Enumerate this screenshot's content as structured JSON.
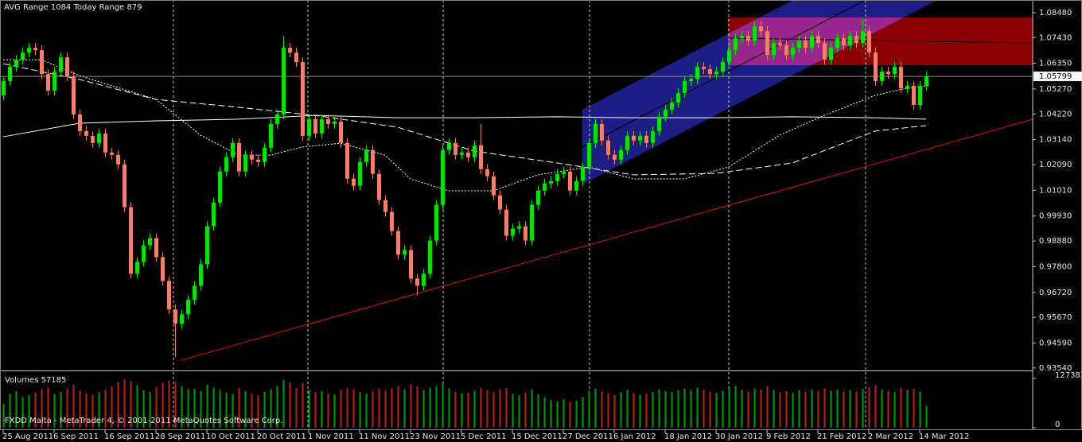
{
  "chart_data": {
    "type": "candlestick",
    "title": "AVG Range 1084   Today Range 879",
    "footer": "FXDD Malta - MetaTrader 4, © 2001-2011 MetaQuotes Software Corp.",
    "up_color": "#00e600",
    "down_color": "#f08068",
    "categories": [
      "25 Aug 2011",
      null,
      null,
      null,
      null,
      null,
      null,
      null,
      "6 Sep 2011",
      null,
      null,
      null,
      null,
      null,
      null,
      null,
      "16 Sep 2011",
      null,
      null,
      null,
      null,
      null,
      null,
      null,
      "28 Sep 2011",
      null,
      null,
      null,
      null,
      null,
      null,
      null,
      "10 Oct 2011",
      null,
      null,
      null,
      null,
      null,
      null,
      null,
      "20 Oct 2011",
      null,
      null,
      null,
      null,
      null,
      null,
      null,
      "1 Nov 2011",
      null,
      null,
      null,
      null,
      null,
      null,
      null,
      "11 Nov 2011",
      null,
      null,
      null,
      null,
      null,
      null,
      null,
      "23 Nov 2011",
      null,
      null,
      null,
      null,
      null,
      null,
      null,
      "5 Dec 2011",
      null,
      null,
      null,
      null,
      null,
      null,
      null,
      "15 Dec 2011",
      null,
      null,
      null,
      null,
      null,
      null,
      null,
      "27 Dec 2011",
      null,
      null,
      null,
      null,
      null,
      null,
      null,
      "6 Jan 2012",
      null,
      null,
      null,
      null,
      null,
      null,
      null,
      "18 Jan 2012",
      null,
      null,
      null,
      null,
      null,
      null,
      null,
      "30 Jan 2012",
      null,
      null,
      null,
      null,
      null,
      null,
      null,
      "9 Feb 2012",
      null,
      null,
      null,
      null,
      null,
      null,
      null,
      "21 Feb 2012",
      null,
      null,
      null,
      null,
      null,
      null,
      null,
      "2 Mar 2012",
      null,
      null,
      null,
      null,
      null,
      null,
      null,
      "14 Mar 2012",
      null
    ],
    "open": [
      1.05,
      1.056,
      1.062,
      1.065,
      1.068,
      1.07,
      1.069,
      1.059,
      1.052,
      1.06,
      1.066,
      1.058,
      1.042,
      1.035,
      1.033,
      1.03,
      1.034,
      1.026,
      1.025,
      1.021,
      1.003,
      0.975,
      0.98,
      0.987,
      0.99,
      0.982,
      0.972,
      0.96,
      0.954,
      0.958,
      0.964,
      0.97,
      0.979,
      0.995,
      1.005,
      1.018,
      1.024,
      1.03,
      1.018,
      1.025,
      1.023,
      1.022,
      1.028,
      1.038,
      1.042,
      1.07,
      1.068,
      1.064,
      1.033,
      1.04,
      1.034,
      1.04,
      1.038,
      1.039,
      1.03,
      1.015,
      1.012,
      1.022,
      1.027,
      1.017,
      1.006,
      1.001,
      0.993,
      0.983,
      0.985,
      0.973,
      0.97,
      0.975,
      0.989,
      1.004,
      1.027,
      1.03,
      1.025,
      1.026,
      1.024,
      1.029,
      1.019,
      1.016,
      1.008,
      1.002,
      0.991,
      0.994,
      0.995,
      0.989,
      1.004,
      1.01,
      1.013,
      1.014,
      1.017,
      1.018,
      1.01,
      1.014,
      1.02,
      1.03,
      1.038,
      1.031,
      1.025,
      1.023,
      1.027,
      1.033,
      1.031,
      1.033,
      1.03,
      1.035,
      1.041,
      1.044,
      1.047,
      1.051,
      1.056,
      1.057,
      1.062,
      1.061,
      1.059,
      1.06,
      1.064,
      1.069,
      1.074,
      1.075,
      1.073,
      1.079,
      1.077,
      1.067,
      1.072,
      1.071,
      1.067,
      1.07,
      1.073,
      1.07,
      1.075,
      1.072,
      1.065,
      1.07,
      1.074,
      1.071,
      1.075,
      1.072,
      1.077,
      1.068,
      1.056,
      1.06,
      1.059,
      1.062,
      1.053,
      1.054,
      1.046,
      1.054
    ],
    "high": [
      1.058,
      1.064,
      1.067,
      1.07,
      1.072,
      1.072,
      1.071,
      1.061,
      1.062,
      1.068,
      1.068,
      1.06,
      1.044,
      1.037,
      1.035,
      1.036,
      1.036,
      1.028,
      1.027,
      1.023,
      1.005,
      0.982,
      0.989,
      0.992,
      0.992,
      0.984,
      0.974,
      0.962,
      0.96,
      0.966,
      0.972,
      0.981,
      0.997,
      1.007,
      1.02,
      1.026,
      1.032,
      1.032,
      1.027,
      1.027,
      1.025,
      1.03,
      1.04,
      1.044,
      1.075,
      1.072,
      1.07,
      1.066,
      1.042,
      1.042,
      1.042,
      1.042,
      1.041,
      1.041,
      1.032,
      1.017,
      1.024,
      1.029,
      1.029,
      1.019,
      1.008,
      1.003,
      0.995,
      0.987,
      0.987,
      0.975,
      0.977,
      0.991,
      1.006,
      1.029,
      1.032,
      1.032,
      1.028,
      1.028,
      1.031,
      1.038,
      1.021,
      1.018,
      1.01,
      1.004,
      0.996,
      0.997,
      0.997,
      1.006,
      1.012,
      1.015,
      1.016,
      1.019,
      1.02,
      1.02,
      1.016,
      1.022,
      1.032,
      1.04,
      1.04,
      1.033,
      1.027,
      1.029,
      1.035,
      1.035,
      1.035,
      1.035,
      1.037,
      1.043,
      1.046,
      1.049,
      1.053,
      1.058,
      1.059,
      1.064,
      1.064,
      1.063,
      1.062,
      1.066,
      1.071,
      1.076,
      1.077,
      1.077,
      1.081,
      1.081,
      1.079,
      1.074,
      1.074,
      1.073,
      1.072,
      1.075,
      1.075,
      1.077,
      1.077,
      1.074,
      1.072,
      1.076,
      1.076,
      1.077,
      1.077,
      1.082,
      1.079,
      1.07,
      1.062,
      1.062,
      1.064,
      1.064,
      1.056,
      1.056,
      1.056,
      1.06
    ],
    "low": [
      1.048,
      1.054,
      1.06,
      1.063,
      1.066,
      1.067,
      1.057,
      1.05,
      1.05,
      1.058,
      1.056,
      1.04,
      1.033,
      1.031,
      1.028,
      1.028,
      1.024,
      1.023,
      1.019,
      1.001,
      0.973,
      0.973,
      0.978,
      0.985,
      0.98,
      0.97,
      0.958,
      0.94,
      0.952,
      0.956,
      0.962,
      0.968,
      0.977,
      0.993,
      1.003,
      1.016,
      1.022,
      1.016,
      1.016,
      1.021,
      1.02,
      1.02,
      1.026,
      1.036,
      1.04,
      1.066,
      1.062,
      1.031,
      1.031,
      1.032,
      1.032,
      1.036,
      1.036,
      1.028,
      1.013,
      1.01,
      1.01,
      1.02,
      1.015,
      1.004,
      0.999,
      0.991,
      0.981,
      0.981,
      0.971,
      0.966,
      0.968,
      0.973,
      0.987,
      1.002,
      1.025,
      1.023,
      1.023,
      1.022,
      1.022,
      1.017,
      1.014,
      1.006,
      1.0,
      0.989,
      0.989,
      0.992,
      0.987,
      0.987,
      1.002,
      1.008,
      1.011,
      1.012,
      1.015,
      1.008,
      1.008,
      1.012,
      1.018,
      1.028,
      1.029,
      1.023,
      1.021,
      1.021,
      1.025,
      1.029,
      1.029,
      1.028,
      1.028,
      1.033,
      1.039,
      1.042,
      1.045,
      1.049,
      1.054,
      1.055,
      1.059,
      1.057,
      1.057,
      1.058,
      1.062,
      1.067,
      1.072,
      1.071,
      1.071,
      1.075,
      1.065,
      1.065,
      1.069,
      1.065,
      1.065,
      1.068,
      1.068,
      1.068,
      1.07,
      1.063,
      1.063,
      1.068,
      1.069,
      1.069,
      1.07,
      1.07,
      1.066,
      1.054,
      1.054,
      1.057,
      1.057,
      1.051,
      1.051,
      1.044,
      1.044,
      1.052
    ],
    "close": [
      1.056,
      1.062,
      1.065,
      1.068,
      1.07,
      1.069,
      1.059,
      1.052,
      1.06,
      1.066,
      1.058,
      1.042,
      1.035,
      1.033,
      1.03,
      1.034,
      1.026,
      1.025,
      1.021,
      1.003,
      0.975,
      0.98,
      0.987,
      0.99,
      0.982,
      0.972,
      0.96,
      0.954,
      0.958,
      0.964,
      0.97,
      0.979,
      0.995,
      1.005,
      1.018,
      1.024,
      1.03,
      1.018,
      1.025,
      1.023,
      1.022,
      1.028,
      1.038,
      1.042,
      1.07,
      1.068,
      1.064,
      1.033,
      1.04,
      1.034,
      1.04,
      1.038,
      1.039,
      1.03,
      1.015,
      1.012,
      1.022,
      1.027,
      1.017,
      1.006,
      1.001,
      0.993,
      0.983,
      0.985,
      0.973,
      0.97,
      0.975,
      0.989,
      1.004,
      1.027,
      1.03,
      1.025,
      1.026,
      1.024,
      1.029,
      1.019,
      1.016,
      1.008,
      1.002,
      0.991,
      0.994,
      0.995,
      0.989,
      1.004,
      1.01,
      1.013,
      1.014,
      1.017,
      1.018,
      1.01,
      1.014,
      1.02,
      1.03,
      1.038,
      1.031,
      1.025,
      1.023,
      1.027,
      1.033,
      1.031,
      1.033,
      1.03,
      1.035,
      1.041,
      1.044,
      1.047,
      1.051,
      1.056,
      1.057,
      1.062,
      1.061,
      1.059,
      1.06,
      1.064,
      1.069,
      1.074,
      1.075,
      1.073,
      1.079,
      1.077,
      1.067,
      1.072,
      1.071,
      1.067,
      1.07,
      1.073,
      1.07,
      1.075,
      1.072,
      1.065,
      1.07,
      1.074,
      1.071,
      1.075,
      1.072,
      1.077,
      1.068,
      1.056,
      1.06,
      1.059,
      1.062,
      1.053,
      1.054,
      1.046,
      1.054,
      1.058
    ],
    "volume_label": "Volumes 57185",
    "volumes": [
      62000,
      88000,
      95000,
      78000,
      84000,
      91000,
      99000,
      104000,
      87000,
      93000,
      101000,
      112000,
      96000,
      89000,
      85000,
      92000,
      98000,
      107000,
      118000,
      125000,
      121000,
      110000,
      97000,
      93000,
      105000,
      116000,
      122000,
      119000,
      108000,
      99000,
      101000,
      95000,
      112000,
      104000,
      98000,
      91000,
      87000,
      102000,
      95000,
      88000,
      84000,
      93000,
      99000,
      108000,
      124000,
      117000,
      103000,
      115000,
      98000,
      92000,
      95000,
      89000,
      86000,
      97000,
      104000,
      99000,
      92000,
      88000,
      94000,
      101000,
      96000,
      103000,
      108000,
      99000,
      112000,
      106000,
      97000,
      104000,
      108000,
      115000,
      102000,
      93000,
      89000,
      91000,
      96000,
      104000,
      97000,
      92000,
      99000,
      103000,
      88000,
      84000,
      91000,
      99000,
      87000,
      79000,
      72000,
      68000,
      74000,
      66000,
      70000,
      80000,
      96000,
      101000,
      94000,
      89000,
      85000,
      92000,
      98000,
      90000,
      86000,
      88000,
      93000,
      99000,
      95000,
      92000,
      97000,
      101000,
      96000,
      104000,
      98000,
      93000,
      90000,
      96000,
      102000,
      108000,
      97000,
      94000,
      101000,
      99000,
      107000,
      98000,
      92000,
      95000,
      91000,
      97000,
      93000,
      99000,
      95000,
      102000,
      96000,
      98000,
      94000,
      97000,
      93000,
      101000,
      105000,
      110000,
      99000,
      95000,
      92000,
      104000,
      97000,
      101000,
      94000,
      57185
    ],
    "ylim": [
      0.9347,
      1.0901
    ],
    "yticks": [
      {
        "value": 1.0848,
        "label": "1.08480"
      },
      {
        "value": 1.0743,
        "label": "1.07430"
      },
      {
        "value": 1.0635,
        "label": "1.06350"
      },
      {
        "value": 1.0527,
        "label": "1.05270"
      },
      {
        "value": 1.0422,
        "label": "1.04220"
      },
      {
        "value": 1.0314,
        "label": "1.03140"
      },
      {
        "value": 1.0209,
        "label": "1.02090"
      },
      {
        "value": 1.0101,
        "label": "1.01010"
      },
      {
        "value": 0.9993,
        "label": "0.99930"
      },
      {
        "value": 0.9888,
        "label": "0.98880"
      },
      {
        "value": 0.978,
        "label": "0.97800"
      },
      {
        "value": 0.9672,
        "label": "0.96720"
      },
      {
        "value": 0.9567,
        "label": "0.95670"
      },
      {
        "value": 0.9459,
        "label": "0.94590"
      },
      {
        "value": 0.9354,
        "label": "0.93540"
      }
    ],
    "current_price": 1.05799,
    "vol_ylim": [
      0,
      140000
    ],
    "vol_yticks": [
      127383,
      0
    ],
    "series": [
      {
        "color": "#ffffff",
        "dash": "2,2",
        "x": [
          0,
          6,
          12,
          18,
          24,
          31,
          37,
          42,
          47,
          53,
          60,
          64,
          70,
          77,
          84,
          92,
          99,
          107,
          114,
          122,
          129,
          137,
          141,
          145
        ],
        "values": [
          1.065,
          1.065,
          1.0583,
          1.0533,
          1.0483,
          1.0333,
          1.0249,
          1.0249,
          1.0283,
          1.0299,
          1.0249,
          1.0149,
          1.0099,
          1.0099,
          1.0166,
          1.0199,
          1.0149,
          1.0149,
          1.0199,
          1.0333,
          1.0416,
          1.05,
          1.0525,
          1.054
        ]
      },
      {
        "color": "#ffffff",
        "dash": "8,4",
        "x": [
          0,
          12,
          24,
          37,
          49,
          62,
          74,
          87,
          99,
          112,
          124,
          132,
          137,
          145
        ],
        "values": [
          1.0633,
          1.0567,
          1.0483,
          1.045,
          1.0416,
          1.0366,
          1.0266,
          1.0216,
          1.0166,
          1.0172,
          1.0216,
          1.0299,
          1.035,
          1.0373
        ]
      },
      {
        "color": "#ffffff",
        "dash": "none",
        "x": [
          0,
          12,
          24,
          37,
          49,
          62,
          74,
          87,
          99,
          112,
          124,
          137,
          145
        ],
        "values": [
          1.0326,
          1.0383,
          1.0393,
          1.04,
          1.0416,
          1.0406,
          1.0406,
          1.041,
          1.0406,
          1.0406,
          1.041,
          1.0406,
          1.04
        ]
      }
    ]
  }
}
